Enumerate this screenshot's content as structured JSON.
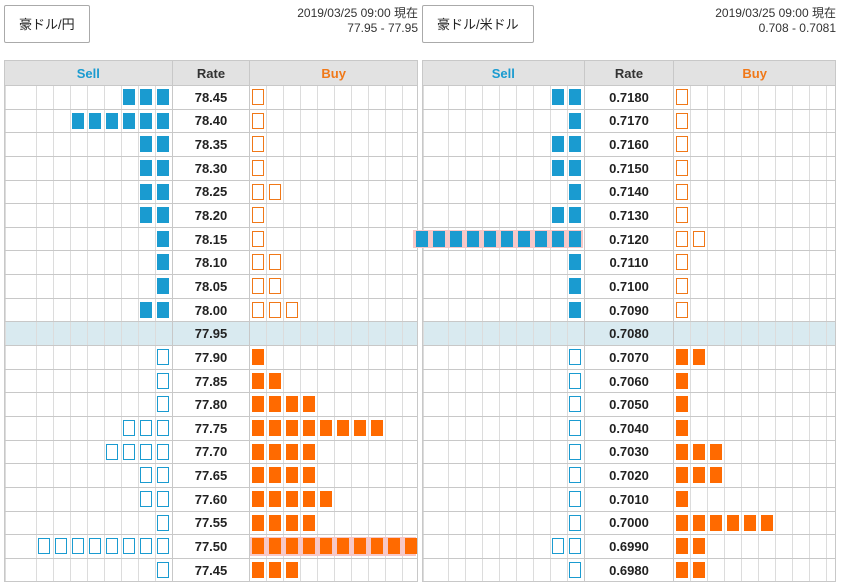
{
  "panels": [
    {
      "pair_label": "豪ドル/円",
      "quote_time": "2019/03/25 09:00 現在",
      "quote_range": "77.95 - 77.95",
      "headers": {
        "sell": "Sell",
        "rate": "Rate",
        "buy": "Buy"
      },
      "rows": [
        {
          "rate": "78.45",
          "sell_filled": 3,
          "sell_outline": 0,
          "buy_filled": 0,
          "buy_outline": 1
        },
        {
          "rate": "78.40",
          "sell_filled": 6,
          "sell_outline": 0,
          "buy_filled": 0,
          "buy_outline": 1
        },
        {
          "rate": "78.35",
          "sell_filled": 2,
          "sell_outline": 0,
          "buy_filled": 0,
          "buy_outline": 1
        },
        {
          "rate": "78.30",
          "sell_filled": 2,
          "sell_outline": 0,
          "buy_filled": 0,
          "buy_outline": 1
        },
        {
          "rate": "78.25",
          "sell_filled": 2,
          "sell_outline": 0,
          "buy_filled": 0,
          "buy_outline": 2
        },
        {
          "rate": "78.20",
          "sell_filled": 2,
          "sell_outline": 0,
          "buy_filled": 0,
          "buy_outline": 1
        },
        {
          "rate": "78.15",
          "sell_filled": 1,
          "sell_outline": 0,
          "buy_filled": 0,
          "buy_outline": 1
        },
        {
          "rate": "78.10",
          "sell_filled": 1,
          "sell_outline": 0,
          "buy_filled": 0,
          "buy_outline": 2
        },
        {
          "rate": "78.05",
          "sell_filled": 1,
          "sell_outline": 0,
          "buy_filled": 0,
          "buy_outline": 2
        },
        {
          "rate": "78.00",
          "sell_filled": 2,
          "sell_outline": 0,
          "buy_filled": 0,
          "buy_outline": 3
        },
        {
          "rate": "77.95",
          "current": true,
          "sell_filled": 0,
          "sell_outline": 0,
          "buy_filled": 0,
          "buy_outline": 0
        },
        {
          "rate": "77.90",
          "sell_filled": 0,
          "sell_outline": 1,
          "buy_filled": 1,
          "buy_outline": 0
        },
        {
          "rate": "77.85",
          "sell_filled": 0,
          "sell_outline": 1,
          "buy_filled": 2,
          "buy_outline": 0
        },
        {
          "rate": "77.80",
          "sell_filled": 0,
          "sell_outline": 1,
          "buy_filled": 4,
          "buy_outline": 0
        },
        {
          "rate": "77.75",
          "sell_filled": 0,
          "sell_outline": 3,
          "buy_filled": 8,
          "buy_outline": 0
        },
        {
          "rate": "77.70",
          "sell_filled": 0,
          "sell_outline": 4,
          "buy_filled": 4,
          "buy_outline": 0
        },
        {
          "rate": "77.65",
          "sell_filled": 0,
          "sell_outline": 2,
          "buy_filled": 4,
          "buy_outline": 0
        },
        {
          "rate": "77.60",
          "sell_filled": 0,
          "sell_outline": 2,
          "buy_filled": 5,
          "buy_outline": 0
        },
        {
          "rate": "77.55",
          "sell_filled": 0,
          "sell_outline": 1,
          "buy_filled": 4,
          "buy_outline": 0
        },
        {
          "rate": "77.50",
          "sell_filled": 0,
          "sell_outline": 8,
          "buy_filled": 10,
          "buy_outline": 0,
          "highlight": "buy"
        },
        {
          "rate": "77.45",
          "sell_filled": 0,
          "sell_outline": 1,
          "buy_filled": 3,
          "buy_outline": 0
        }
      ]
    },
    {
      "pair_label": "豪ドル/米ドル",
      "quote_time": "2019/03/25 09:00 現在",
      "quote_range": "0.708 - 0.7081",
      "headers": {
        "sell": "Sell",
        "rate": "Rate",
        "buy": "Buy"
      },
      "rows": [
        {
          "rate": "0.7180",
          "sell_filled": 2,
          "sell_outline": 0,
          "buy_filled": 0,
          "buy_outline": 1
        },
        {
          "rate": "0.7170",
          "sell_filled": 1,
          "sell_outline": 0,
          "buy_filled": 0,
          "buy_outline": 1
        },
        {
          "rate": "0.7160",
          "sell_filled": 2,
          "sell_outline": 0,
          "buy_filled": 0,
          "buy_outline": 1
        },
        {
          "rate": "0.7150",
          "sell_filled": 2,
          "sell_outline": 0,
          "buy_filled": 0,
          "buy_outline": 1
        },
        {
          "rate": "0.7140",
          "sell_filled": 1,
          "sell_outline": 0,
          "buy_filled": 0,
          "buy_outline": 1
        },
        {
          "rate": "0.7130",
          "sell_filled": 2,
          "sell_outline": 0,
          "buy_filled": 0,
          "buy_outline": 1
        },
        {
          "rate": "0.7120",
          "sell_filled": 10,
          "sell_outline": 0,
          "buy_filled": 0,
          "buy_outline": 2,
          "highlight": "sell"
        },
        {
          "rate": "0.7110",
          "sell_filled": 1,
          "sell_outline": 0,
          "buy_filled": 0,
          "buy_outline": 1
        },
        {
          "rate": "0.7100",
          "sell_filled": 1,
          "sell_outline": 0,
          "buy_filled": 0,
          "buy_outline": 1
        },
        {
          "rate": "0.7090",
          "sell_filled": 1,
          "sell_outline": 0,
          "buy_filled": 0,
          "buy_outline": 1
        },
        {
          "rate": "0.7080",
          "current": true,
          "sell_filled": 0,
          "sell_outline": 0,
          "buy_filled": 0,
          "buy_outline": 0
        },
        {
          "rate": "0.7070",
          "sell_filled": 0,
          "sell_outline": 1,
          "buy_filled": 2,
          "buy_outline": 0
        },
        {
          "rate": "0.7060",
          "sell_filled": 0,
          "sell_outline": 1,
          "buy_filled": 1,
          "buy_outline": 0
        },
        {
          "rate": "0.7050",
          "sell_filled": 0,
          "sell_outline": 1,
          "buy_filled": 1,
          "buy_outline": 0
        },
        {
          "rate": "0.7040",
          "sell_filled": 0,
          "sell_outline": 1,
          "buy_filled": 1,
          "buy_outline": 0
        },
        {
          "rate": "0.7030",
          "sell_filled": 0,
          "sell_outline": 1,
          "buy_filled": 3,
          "buy_outline": 0
        },
        {
          "rate": "0.7020",
          "sell_filled": 0,
          "sell_outline": 1,
          "buy_filled": 3,
          "buy_outline": 0
        },
        {
          "rate": "0.7010",
          "sell_filled": 0,
          "sell_outline": 1,
          "buy_filled": 1,
          "buy_outline": 0
        },
        {
          "rate": "0.7000",
          "sell_filled": 0,
          "sell_outline": 1,
          "buy_filled": 6,
          "buy_outline": 0
        },
        {
          "rate": "0.6990",
          "sell_filled": 0,
          "sell_outline": 2,
          "buy_filled": 2,
          "buy_outline": 0
        },
        {
          "rate": "0.6980",
          "sell_filled": 0,
          "sell_outline": 1,
          "buy_filled": 2,
          "buy_outline": 0
        }
      ]
    }
  ],
  "colors": {
    "sell": "#1a9bd0",
    "buy": "#f07818",
    "buy_fill": "#ff6a00",
    "current_row": "#d9eaf0",
    "highlight": "#f6c8c8",
    "header_bg": "#e2e2e2"
  }
}
